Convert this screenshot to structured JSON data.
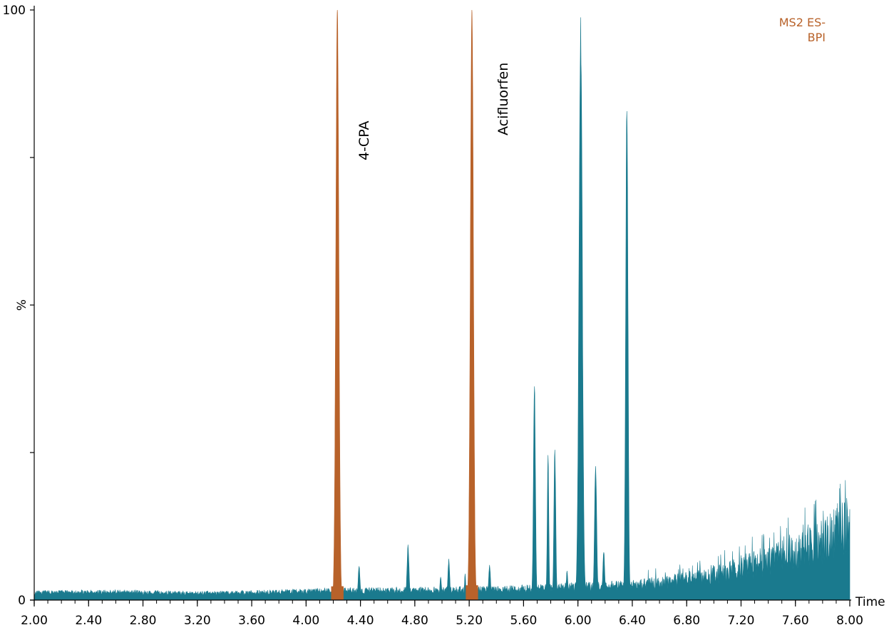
{
  "chart_data": {
    "type": "area",
    "title": "",
    "trace_label": "MS2 ES-\nBPI",
    "xlabel": "Time",
    "ylabel": "%",
    "xlim": [
      2.0,
      8.0
    ],
    "ylim": [
      0,
      100
    ],
    "x_ticks": [
      "2.00",
      "2.40",
      "2.80",
      "3.20",
      "3.60",
      "4.00",
      "4.40",
      "4.80",
      "5.20",
      "5.60",
      "6.00",
      "6.40",
      "6.80",
      "7.20",
      "7.60",
      "8.00"
    ],
    "y_ticks": [
      "0",
      "%",
      "100"
    ],
    "colors": {
      "trace": "#1a7a8e",
      "highlight": "#b8622a",
      "axis": "#000000",
      "trace_label": "#b8622a"
    },
    "baseline": [
      {
        "x": 2.0,
        "y": 1.2
      },
      {
        "x": 2.6,
        "y": 1.3
      },
      {
        "x": 3.2,
        "y": 1.1
      },
      {
        "x": 3.8,
        "y": 1.3
      },
      {
        "x": 4.2,
        "y": 1.5
      },
      {
        "x": 4.8,
        "y": 1.6
      },
      {
        "x": 5.4,
        "y": 1.7
      },
      {
        "x": 5.7,
        "y": 1.9
      },
      {
        "x": 6.2,
        "y": 2.3
      },
      {
        "x": 6.5,
        "y": 2.6
      },
      {
        "x": 6.8,
        "y": 3.3
      },
      {
        "x": 7.1,
        "y": 4.6
      },
      {
        "x": 7.4,
        "y": 6.2
      },
      {
        "x": 7.7,
        "y": 8.3
      },
      {
        "x": 8.0,
        "y": 12.0
      }
    ],
    "peaks": [
      {
        "rt": 4.39,
        "height": 5.5,
        "width": 0.012,
        "kind": "trace"
      },
      {
        "rt": 4.75,
        "height": 9.0,
        "width": 0.013,
        "kind": "trace"
      },
      {
        "rt": 4.99,
        "height": 3.5,
        "width": 0.01,
        "kind": "trace"
      },
      {
        "rt": 5.05,
        "height": 6.5,
        "width": 0.012,
        "kind": "trace"
      },
      {
        "rt": 5.17,
        "height": 4.0,
        "width": 0.008,
        "kind": "trace"
      },
      {
        "rt": 5.35,
        "height": 5.5,
        "width": 0.012,
        "kind": "trace"
      },
      {
        "rt": 5.68,
        "height": 37.5,
        "width": 0.013,
        "kind": "trace"
      },
      {
        "rt": 5.78,
        "height": 24.5,
        "width": 0.01,
        "kind": "trace"
      },
      {
        "rt": 5.83,
        "height": 26.0,
        "width": 0.012,
        "kind": "trace"
      },
      {
        "rt": 5.92,
        "height": 4.5,
        "width": 0.01,
        "kind": "trace"
      },
      {
        "rt": 6.02,
        "height": 100.0,
        "width": 0.022,
        "kind": "trace"
      },
      {
        "rt": 6.13,
        "height": 23.0,
        "width": 0.014,
        "kind": "trace"
      },
      {
        "rt": 6.19,
        "height": 8.0,
        "width": 0.012,
        "kind": "trace"
      },
      {
        "rt": 6.36,
        "height": 88.0,
        "width": 0.015,
        "kind": "trace"
      },
      {
        "rt": 7.59,
        "height": 5.5,
        "width": 0.006,
        "kind": "trace"
      },
      {
        "rt": 7.85,
        "height": 4.0,
        "width": 0.006,
        "kind": "trace"
      },
      {
        "rt": 4.23,
        "height": 100.0,
        "width": 0.02,
        "kind": "highlight",
        "label": "4-CPA"
      },
      {
        "rt": 5.22,
        "height": 100.0,
        "width": 0.02,
        "kind": "highlight",
        "label": "Acifluorfen"
      }
    ]
  }
}
